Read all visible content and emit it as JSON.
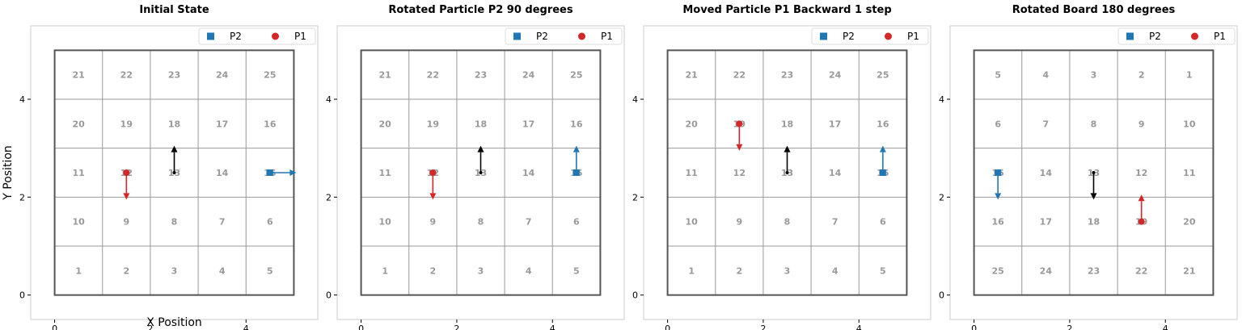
{
  "figure": {
    "xlabel": "X Position",
    "ylabel": "Y Position"
  },
  "colors": {
    "P1": "#d62728",
    "P2": "#1f77b4",
    "neutral": "#000000",
    "grid": "#999999",
    "border": "#555555",
    "cell_number": "#999999"
  },
  "chart_data": [
    {
      "type": "scatter",
      "title": "Initial State",
      "xlim": [
        -0.5,
        5.5
      ],
      "ylim": [
        -0.5,
        5.5
      ],
      "xticks": [
        0,
        2,
        4
      ],
      "yticks": [
        0,
        2,
        4
      ],
      "legend_position": "top-right",
      "legend": [
        "P2",
        "P1"
      ],
      "cells": [
        [
          21,
          22,
          23,
          24,
          25
        ],
        [
          20,
          19,
          18,
          17,
          16
        ],
        [
          11,
          12,
          13,
          14,
          15
        ],
        [
          10,
          9,
          8,
          7,
          6
        ],
        [
          1,
          2,
          3,
          4,
          5
        ]
      ],
      "particles": [
        {
          "name": "P2",
          "marker": "square",
          "x": 4.5,
          "y": 2.5,
          "dir": "right"
        },
        {
          "name": "P1",
          "marker": "circle",
          "x": 1.5,
          "y": 2.5,
          "dir": "down"
        },
        {
          "name": "",
          "marker": "dot",
          "x": 2.5,
          "y": 2.5,
          "dir": "up"
        }
      ]
    },
    {
      "type": "scatter",
      "title": "Rotated Particle P2 90 degrees",
      "xlim": [
        -0.5,
        5.5
      ],
      "ylim": [
        -0.5,
        5.5
      ],
      "xticks": [
        0,
        2,
        4
      ],
      "yticks": [
        0,
        2,
        4
      ],
      "legend_position": "top-right",
      "legend": [
        "P2",
        "P1"
      ],
      "cells": [
        [
          21,
          22,
          23,
          24,
          25
        ],
        [
          20,
          19,
          18,
          17,
          16
        ],
        [
          11,
          12,
          13,
          14,
          15
        ],
        [
          10,
          9,
          8,
          7,
          6
        ],
        [
          1,
          2,
          3,
          4,
          5
        ]
      ],
      "particles": [
        {
          "name": "P2",
          "marker": "square",
          "x": 4.5,
          "y": 2.5,
          "dir": "up"
        },
        {
          "name": "P1",
          "marker": "circle",
          "x": 1.5,
          "y": 2.5,
          "dir": "down"
        },
        {
          "name": "",
          "marker": "dot",
          "x": 2.5,
          "y": 2.5,
          "dir": "up"
        }
      ]
    },
    {
      "type": "scatter",
      "title": "Moved Particle P1 Backward 1 step",
      "xlim": [
        -0.5,
        5.5
      ],
      "ylim": [
        -0.5,
        5.5
      ],
      "xticks": [
        0,
        2,
        4
      ],
      "yticks": [
        0,
        2,
        4
      ],
      "legend_position": "top-right",
      "legend": [
        "P2",
        "P1"
      ],
      "cells": [
        [
          21,
          22,
          23,
          24,
          25
        ],
        [
          20,
          19,
          18,
          17,
          16
        ],
        [
          11,
          12,
          13,
          14,
          15
        ],
        [
          10,
          9,
          8,
          7,
          6
        ],
        [
          1,
          2,
          3,
          4,
          5
        ]
      ],
      "particles": [
        {
          "name": "P2",
          "marker": "square",
          "x": 4.5,
          "y": 2.5,
          "dir": "up"
        },
        {
          "name": "P1",
          "marker": "circle",
          "x": 1.5,
          "y": 3.5,
          "dir": "down"
        },
        {
          "name": "",
          "marker": "dot",
          "x": 2.5,
          "y": 2.5,
          "dir": "up"
        }
      ]
    },
    {
      "type": "scatter",
      "title": "Rotated Board 180 degrees",
      "xlim": [
        -0.5,
        5.5
      ],
      "ylim": [
        -0.5,
        5.5
      ],
      "xticks": [
        0,
        2,
        4
      ],
      "yticks": [
        0,
        2,
        4
      ],
      "legend_position": "top-right",
      "legend": [
        "P2",
        "P1"
      ],
      "cells": [
        [
          5,
          4,
          3,
          2,
          1
        ],
        [
          6,
          7,
          8,
          9,
          10
        ],
        [
          15,
          14,
          13,
          12,
          11
        ],
        [
          16,
          17,
          18,
          19,
          20
        ],
        [
          25,
          24,
          23,
          22,
          21
        ]
      ],
      "particles": [
        {
          "name": "P2",
          "marker": "square",
          "x": 0.5,
          "y": 2.5,
          "dir": "down"
        },
        {
          "name": "P1",
          "marker": "circle",
          "x": 3.5,
          "y": 1.5,
          "dir": "up"
        },
        {
          "name": "",
          "marker": "dot",
          "x": 2.5,
          "y": 2.5,
          "dir": "down"
        }
      ]
    }
  ]
}
